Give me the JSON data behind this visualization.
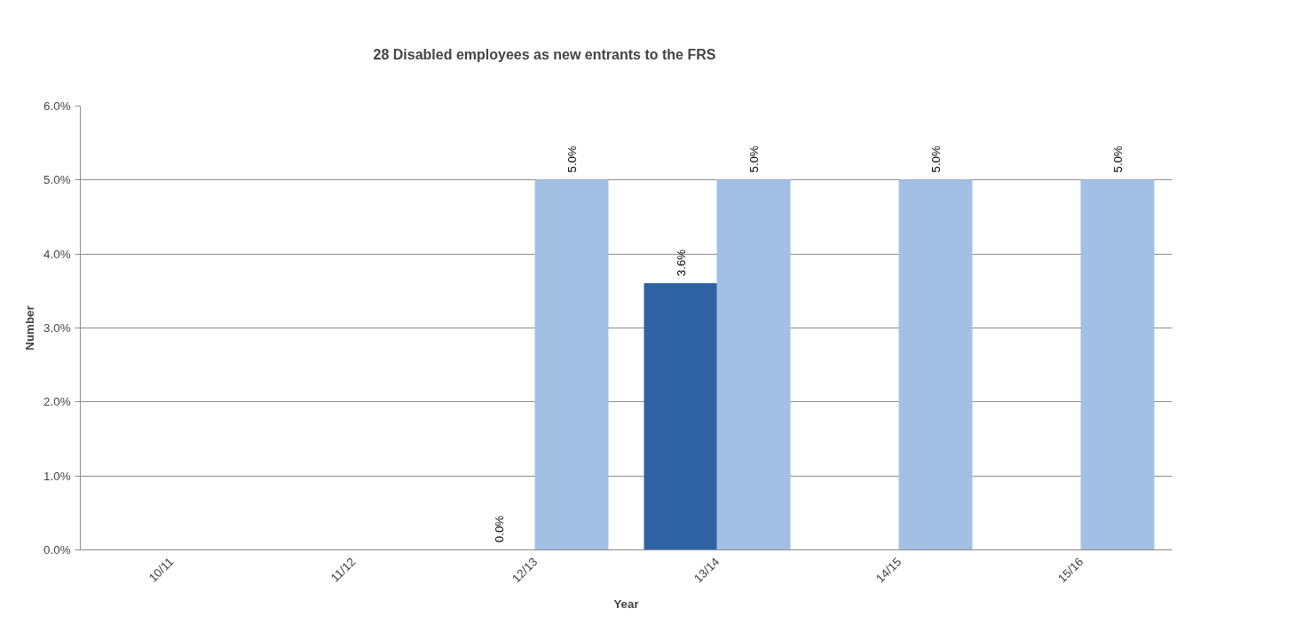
{
  "chart_data": {
    "type": "bar",
    "title": "28 Disabled employees as new entrants to the FRS",
    "xlabel": "Year",
    "ylabel": "Number",
    "categories": [
      "10/11",
      "11/12",
      "12/13",
      "13/14",
      "14/15",
      "15/16"
    ],
    "series": [
      {
        "color": "#2f62a3",
        "values": [
          null,
          null,
          0.0,
          3.6,
          null,
          null
        ],
        "value_labels": [
          null,
          null,
          "0.0%",
          "3.6%",
          null,
          null
        ]
      },
      {
        "color": "#a3c0e4",
        "values": [
          null,
          null,
          5.0,
          5.0,
          5.0,
          5.0
        ],
        "value_labels": [
          null,
          null,
          "5.0%",
          "5.0%",
          "5.0%",
          "5.0%"
        ]
      }
    ],
    "ylim": [
      0,
      6
    ],
    "yticks": [
      {
        "value": 0,
        "label": "0.0%"
      },
      {
        "value": 1,
        "label": "1.0%"
      },
      {
        "value": 2,
        "label": "2.0%"
      },
      {
        "value": 3,
        "label": "3.0%"
      },
      {
        "value": 4,
        "label": "4.0%"
      },
      {
        "value": 5,
        "label": "5.0%"
      },
      {
        "value": 6,
        "label": "6.0%"
      }
    ],
    "grid": "y"
  }
}
